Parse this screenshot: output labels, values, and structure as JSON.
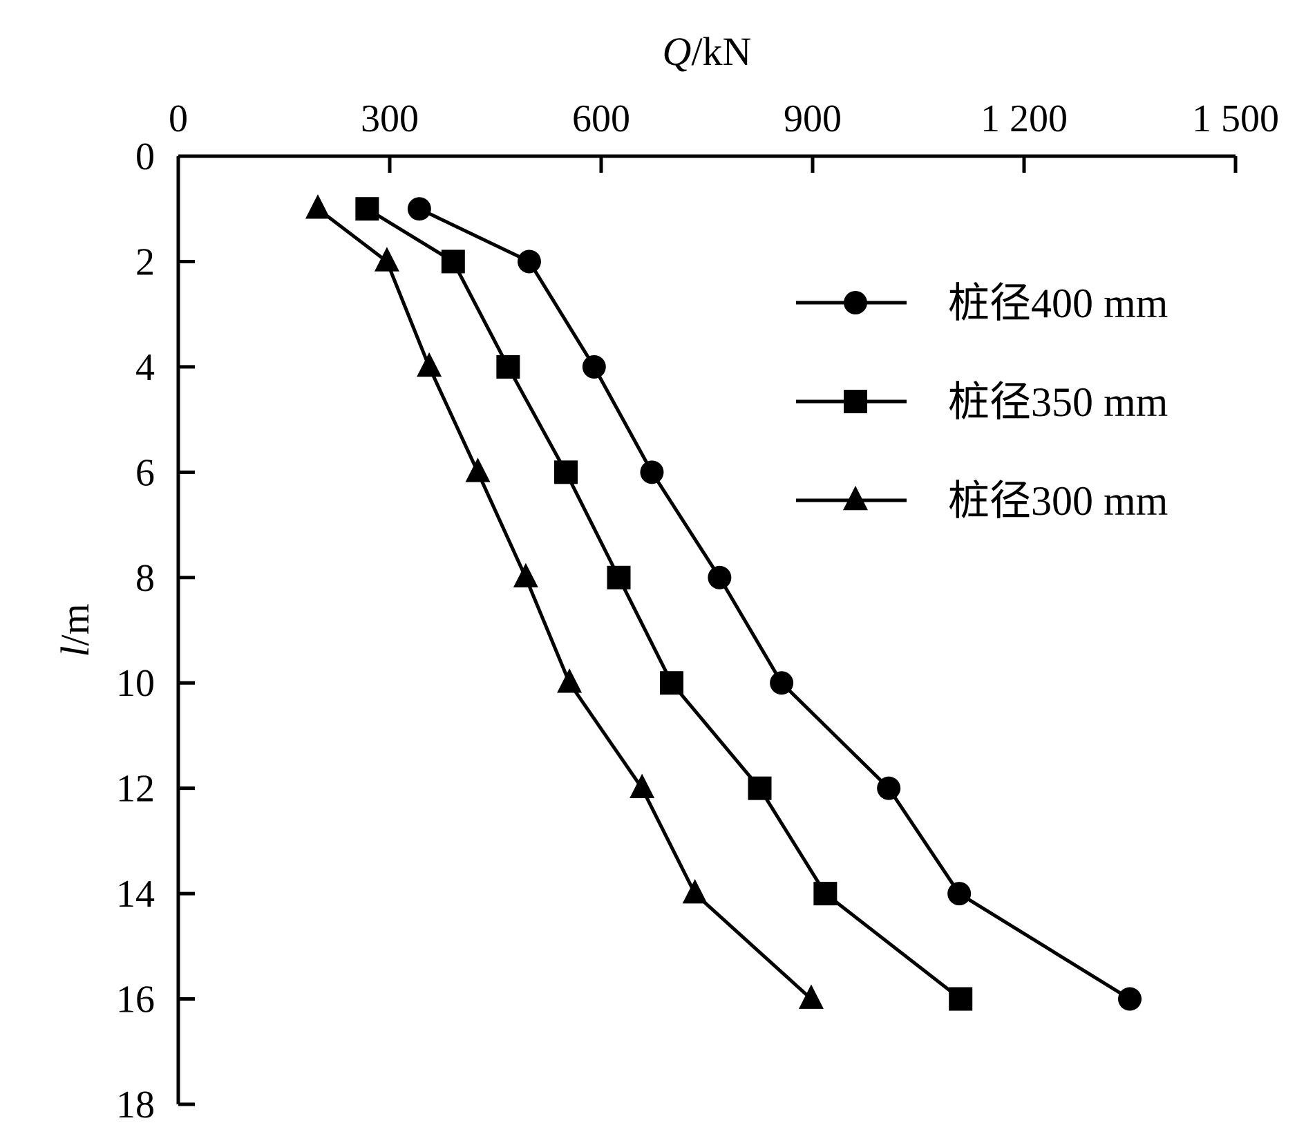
{
  "chart_data": {
    "type": "line",
    "title": "",
    "xlabel_var": "Q",
    "xlabel_unit": "/kN",
    "ylabel_var": "l",
    "ylabel_unit": "/m",
    "x_axis_position": "top",
    "y_axis_inverted": true,
    "xlim": [
      0,
      1500
    ],
    "ylim": [
      0,
      18
    ],
    "xticks": [
      0,
      300,
      600,
      900,
      1200,
      1500
    ],
    "xtick_labels": [
      "0",
      "300",
      "600",
      "900",
      "1 200",
      "1 500"
    ],
    "yticks": [
      0,
      2,
      4,
      6,
      8,
      10,
      12,
      14,
      16,
      18
    ],
    "ytick_labels": [
      "0",
      "2",
      "4",
      "6",
      "8",
      "10",
      "12",
      "14",
      "16",
      "18"
    ],
    "grid": false,
    "legend_position": "top-right",
    "series": [
      {
        "name": "桩径400 mm",
        "marker": "circle",
        "x": [
          342,
          498,
          590,
          672,
          768,
          856,
          1008,
          1108,
          1350
        ],
        "y": [
          1,
          2,
          4,
          6,
          8,
          10,
          12,
          14,
          16
        ]
      },
      {
        "name": "桩径350 mm",
        "marker": "square",
        "x": [
          268,
          390,
          468,
          550,
          625,
          700,
          825,
          918,
          1110
        ],
        "y": [
          1,
          2,
          4,
          6,
          8,
          10,
          12,
          14,
          16
        ]
      },
      {
        "name": "桩径300 mm",
        "marker": "triangle",
        "x": [
          198,
          296,
          356,
          425,
          493,
          555,
          658,
          733,
          898
        ],
        "y": [
          1,
          2,
          4,
          6,
          8,
          10,
          12,
          14,
          16
        ]
      }
    ]
  },
  "colors": {
    "ink": "#000000",
    "background": "#ffffff"
  }
}
